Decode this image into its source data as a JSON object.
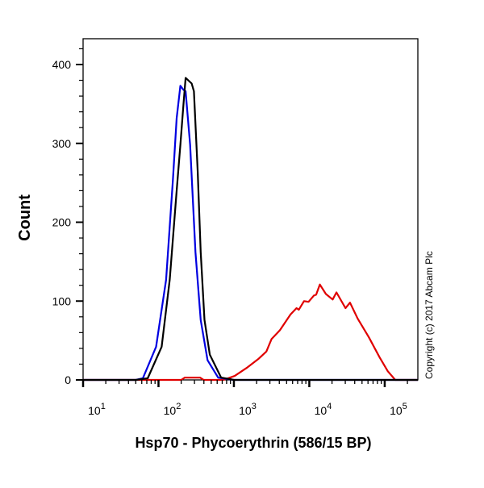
{
  "chart_data": {
    "type": "line",
    "title": "",
    "xlabel": "Hsp70 - Phycoerythrin (586/15 BP)",
    "ylabel": "Count",
    "x_scale": "log",
    "xlim": [
      10,
      275000
    ],
    "ylim": [
      0,
      420
    ],
    "grid": false,
    "x_ticks": [
      {
        "base": "10",
        "exp": "1",
        "value": 10
      },
      {
        "base": "10",
        "exp": "2",
        "value": 100
      },
      {
        "base": "10",
        "exp": "3",
        "value": 1000
      },
      {
        "base": "10",
        "exp": "4",
        "value": 10000
      },
      {
        "base": "10",
        "exp": "5",
        "value": 100000
      }
    ],
    "y_ticks": [
      {
        "label": "0",
        "value": 0
      },
      {
        "label": "100",
        "value": 100
      },
      {
        "label": "200",
        "value": 200
      },
      {
        "label": "300",
        "value": 300
      },
      {
        "label": "400",
        "value": 400
      }
    ],
    "series": [
      {
        "color": "#e00000",
        "x": [
          10,
          200,
          224,
          355,
          398,
          724,
          1023,
          1514,
          2138,
          2692,
          3162,
          4074,
          5623,
          6761,
          7244,
          8511,
          9772,
          11482,
          12303,
          13804,
          16596,
          20417,
          22909,
          30200,
          34674,
          43652,
          61660,
          85114,
          109648,
          138038,
          275000
        ],
        "y": [
          0,
          0,
          3,
          3,
          0,
          0,
          5,
          16,
          27,
          36,
          52,
          63,
          83,
          91,
          89,
          100,
          99,
          107,
          108,
          121,
          109,
          102,
          111,
          91,
          98,
          78,
          54,
          29,
          11,
          0,
          0
        ]
      },
      {
        "color": "#0000e0",
        "x": [
          10,
          50,
          62,
          93,
          126,
          155,
          174,
          195,
          214,
          229,
          263,
          309,
          363,
          447,
          617,
          1000,
          275000
        ],
        "y": [
          0,
          0,
          2,
          42,
          127,
          253,
          332,
          373,
          368,
          366,
          298,
          162,
          76,
          25,
          3,
          0,
          0
        ]
      },
      {
        "color": "#000000",
        "x": [
          10,
          50,
          72,
          110,
          141,
          174,
          195,
          214,
          229,
          275,
          295,
          331,
          363,
          407,
          479,
          676,
          1000,
          275000
        ],
        "y": [
          0,
          0,
          2,
          42,
          127,
          240,
          298,
          349,
          383,
          376,
          366,
          264,
          162,
          76,
          32,
          3,
          0,
          0
        ]
      }
    ],
    "annotation": "Copyright (c) 2017 Abcam Plc"
  }
}
